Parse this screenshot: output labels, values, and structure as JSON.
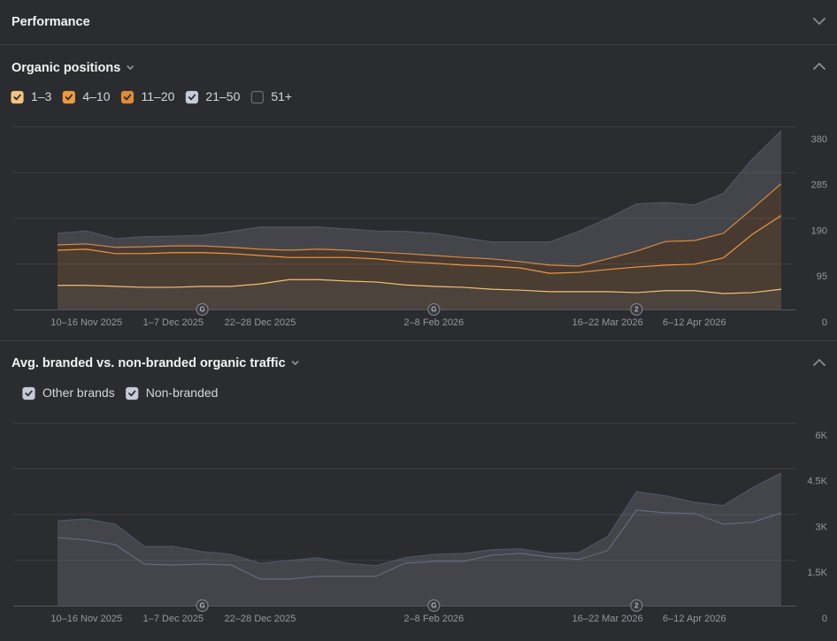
{
  "header": {
    "title": "Performance"
  },
  "chart_data": [
    {
      "type": "area",
      "stacked": true,
      "title": "Organic positions",
      "categories": [
        null,
        "10–16 Nov 2025",
        null,
        null,
        "1–7 Dec 2025",
        null,
        null,
        "22–28 Dec 2025",
        null,
        null,
        null,
        null,
        null,
        "2–8 Feb 2026",
        null,
        null,
        null,
        null,
        null,
        "16–22 Mar 2026",
        null,
        null,
        "6–12 Apr 2026",
        null,
        null,
        null
      ],
      "series": [
        {
          "name": "1–3",
          "color": "#f4c27d",
          "line_color": "#f4c27d",
          "values": [
            50,
            50,
            48,
            46,
            46,
            48,
            48,
            53,
            62,
            62,
            59,
            57,
            51,
            48,
            46,
            42,
            40,
            37,
            37,
            37,
            35,
            39,
            39,
            33,
            35,
            42
          ]
        },
        {
          "name": "4–10",
          "color": "#ee9a3f",
          "line_color": "#ee9a3f",
          "values": [
            73,
            75,
            68,
            70,
            72,
            70,
            68,
            59,
            46,
            46,
            49,
            48,
            48,
            48,
            46,
            48,
            46,
            38,
            40,
            46,
            53,
            53,
            55,
            74,
            121,
            153
          ]
        },
        {
          "name": "11–20",
          "color": "#e08a35",
          "line_color": "#d9843a",
          "values": [
            11,
            11,
            13,
            14,
            14,
            14,
            13,
            13,
            15,
            17,
            15,
            14,
            17,
            16,
            16,
            15,
            13,
            17,
            13,
            22,
            33,
            49,
            49,
            51,
            53,
            66
          ]
        },
        {
          "name": "21–50",
          "color": "#c5cbd6",
          "line_color": "#4e5666",
          "values": [
            24,
            27,
            18,
            21,
            20,
            22,
            33,
            46,
            48,
            46,
            44,
            44,
            46,
            46,
            41,
            35,
            41,
            48,
            72,
            84,
            98,
            81,
            74,
            83,
            103,
            110
          ]
        },
        {
          "name": "51+",
          "color": "#c5cbd6",
          "visible": false
        }
      ],
      "ylim": [
        0,
        380
      ],
      "yticks": [
        0,
        95,
        190,
        285,
        380
      ],
      "grid": true,
      "annotations": [
        {
          "label": "G"
        },
        {
          "label": "G"
        },
        {
          "label": "2"
        }
      ]
    },
    {
      "type": "area",
      "stacked": true,
      "title": "Avg. branded vs. non-branded organic traffic",
      "categories": [
        null,
        "10–16 Nov 2025",
        null,
        null,
        "1–7 Dec 2025",
        null,
        null,
        "22–28 Dec 2025",
        null,
        null,
        null,
        null,
        null,
        "2–8 Feb 2026",
        null,
        null,
        null,
        null,
        null,
        "16–22 Mar 2026",
        null,
        null,
        "6–12 Apr 2026",
        null,
        null,
        null
      ],
      "series": [
        {
          "name": "Other brands",
          "color": "#c5cbd6",
          "line_color": "#596276",
          "values": [
            2230,
            2150,
            2000,
            1360,
            1330,
            1360,
            1330,
            870,
            870,
            960,
            960,
            960,
            1390,
            1450,
            1450,
            1650,
            1710,
            1590,
            1510,
            1800,
            3130,
            3040,
            3020,
            2670,
            2730,
            3040
          ]
        },
        {
          "name": "Non-branded",
          "color": "#c5cbd6",
          "line_color": "#4d5568",
          "values": [
            550,
            690,
            670,
            580,
            610,
            410,
            350,
            520,
            610,
            610,
            430,
            350,
            180,
            230,
            260,
            180,
            150,
            120,
            230,
            460,
            610,
            560,
            370,
            610,
            1130,
            1310
          ]
        }
      ],
      "ylim": [
        0,
        6000
      ],
      "yticks": [
        0,
        {
          "value": 1500,
          "label": "1.5K"
        },
        {
          "value": 3000,
          "label": "3K"
        },
        {
          "value": 4500,
          "label": "4.5K"
        },
        {
          "value": 6000,
          "label": "6K"
        }
      ],
      "grid": true,
      "annotations": [
        {
          "label": "G"
        },
        {
          "label": "G"
        },
        {
          "label": "2"
        }
      ]
    }
  ]
}
